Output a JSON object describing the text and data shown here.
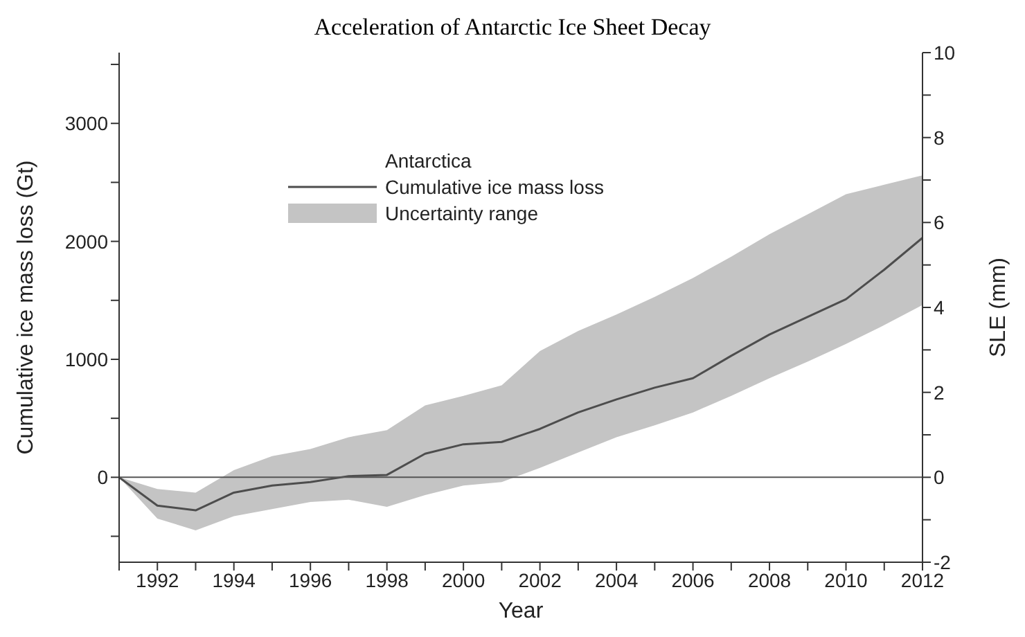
{
  "chart_data": {
    "type": "line",
    "title": "Acceleration of Antarctic Ice Sheet Decay",
    "xlabel": "Year",
    "ylabel": "Cumulative ice mass loss (Gt)",
    "y2label": "SLE (mm)",
    "legend_title": "Antarctica",
    "legend": "top",
    "annotations": [
      "Uncertainty range"
    ],
    "x": [
      1991,
      1992,
      1993,
      1994,
      1995,
      1996,
      1997,
      1998,
      1999,
      2000,
      2001,
      2002,
      2003,
      2004,
      2005,
      2006,
      2007,
      2008,
      2009,
      2010,
      2011,
      2012
    ],
    "series": [
      {
        "name": "Cumulative ice mass loss",
        "color": "#4d4d4d",
        "values": [
          0,
          -240,
          -280,
          -130,
          -70,
          -40,
          10,
          20,
          200,
          280,
          300,
          410,
          550,
          660,
          760,
          840,
          1030,
          1210,
          1360,
          1510,
          1760,
          2030
        ],
        "lower": [
          0,
          -350,
          -450,
          -330,
          -270,
          -210,
          -190,
          -250,
          -150,
          -70,
          -40,
          80,
          210,
          340,
          440,
          550,
          690,
          840,
          980,
          1130,
          1290,
          1460
        ],
        "upper": [
          0,
          -100,
          -130,
          60,
          180,
          240,
          340,
          400,
          610,
          690,
          780,
          1070,
          1240,
          1380,
          1530,
          1690,
          1870,
          2060,
          2230,
          2400,
          2480,
          2560
        ]
      }
    ],
    "xlim": [
      1991,
      2012
    ],
    "xticks": [
      {
        "value": 1991,
        "label": null
      },
      1992,
      {
        "value": 1993,
        "label": null
      },
      1994,
      {
        "value": 1995,
        "label": null
      },
      1996,
      {
        "value": 1997,
        "label": null
      },
      1998,
      {
        "value": 1999,
        "label": null
      },
      2000,
      {
        "value": 2001,
        "label": null
      },
      2002,
      {
        "value": 2003,
        "label": null
      },
      2004,
      {
        "value": 2005,
        "label": null
      },
      2006,
      {
        "value": 2007,
        "label": null
      },
      2008,
      {
        "value": 2009,
        "label": null
      },
      2010,
      {
        "value": 2011,
        "label": null
      },
      2012
    ],
    "ylim": [
      -720,
      3600
    ],
    "yticks": [
      {
        "value": -500,
        "label": null
      },
      0,
      {
        "value": 500,
        "label": null
      },
      1000,
      {
        "value": 1500,
        "label": null
      },
      2000,
      {
        "value": 2500,
        "label": null
      },
      3000,
      {
        "value": 3500,
        "label": null
      }
    ],
    "y2lim": [
      -2,
      10
    ],
    "y2ticks": [
      -2,
      {
        "value": -1,
        "label": null
      },
      0,
      {
        "value": 1,
        "label": null
      },
      2,
      {
        "value": 3,
        "label": null
      },
      4,
      {
        "value": 5,
        "label": null
      },
      6,
      {
        "value": 7,
        "label": null
      },
      8,
      {
        "value": 9,
        "label": null
      },
      10
    ],
    "ref_lines": [
      {
        "axis": "y",
        "value": 0,
        "color": "#555555"
      }
    ],
    "grid": false,
    "marker": "none",
    "line_style": "solid"
  }
}
